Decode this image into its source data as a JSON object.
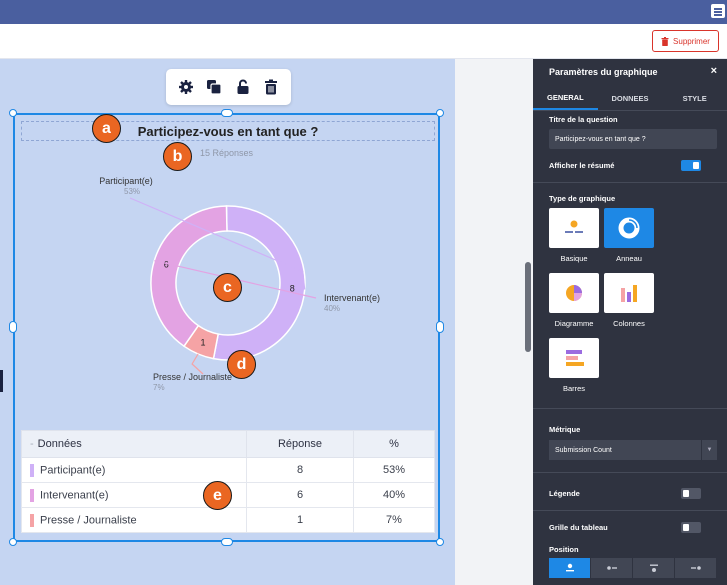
{
  "header": {
    "delete_label": "Supprimer"
  },
  "toolbar": {
    "icons": [
      "gear-icon",
      "duplicate-icon",
      "unlock-icon",
      "trash-icon"
    ]
  },
  "widget": {
    "title": "Participez-vous en tant que ?",
    "responses": "15 Réponses"
  },
  "badges": [
    "a",
    "b",
    "c",
    "d",
    "e"
  ],
  "chart_data": {
    "type": "pie",
    "variant": "donut",
    "title": "Participez-vous en tant que ?",
    "subtitle": "15 Réponses",
    "slices": [
      {
        "label": "Participant(e)",
        "value": 8,
        "percent": "53%",
        "color": "#cfb1f7"
      },
      {
        "label": "Intervenant(e)",
        "value": 6,
        "percent": "40%",
        "color": "#e3a3e3"
      },
      {
        "label": "Presse / Journaliste",
        "value": 1,
        "percent": "7%",
        "color": "#f5a3a5"
      }
    ]
  },
  "table": {
    "headers": [
      "Données",
      "Réponse",
      "%"
    ],
    "rows": [
      {
        "label": "Participant(e)",
        "count": "8",
        "percent": "53%",
        "color": "#cfb1f7"
      },
      {
        "label": "Intervenant(e)",
        "count": "6",
        "percent": "40%",
        "color": "#e3a3e3"
      },
      {
        "label": "Presse / Journaliste",
        "count": "1",
        "percent": "7%",
        "color": "#f5a3a5"
      }
    ]
  },
  "panel": {
    "title": "Paramètres du graphique",
    "close": "×",
    "tabs": [
      "GENERAL",
      "DONNEES",
      "STYLE"
    ],
    "question_title_label": "Titre de la question",
    "question_title_value": "Participez-vous en tant que ?",
    "show_summary_label": "Afficher le résumé",
    "show_summary_on": true,
    "chart_type_label": "Type de graphique",
    "chart_types": [
      "Basique",
      "Anneau",
      "Diagramme",
      "Colonnes",
      "Barres"
    ],
    "chart_type_selected": "Anneau",
    "metric_label": "Métrique",
    "metric_value": "Submission Count",
    "legend_label": "Légende",
    "legend_on": false,
    "grid_label": "Grille du tableau",
    "grid_on": false,
    "position_label": "Position",
    "accent": "#1e88e5"
  }
}
